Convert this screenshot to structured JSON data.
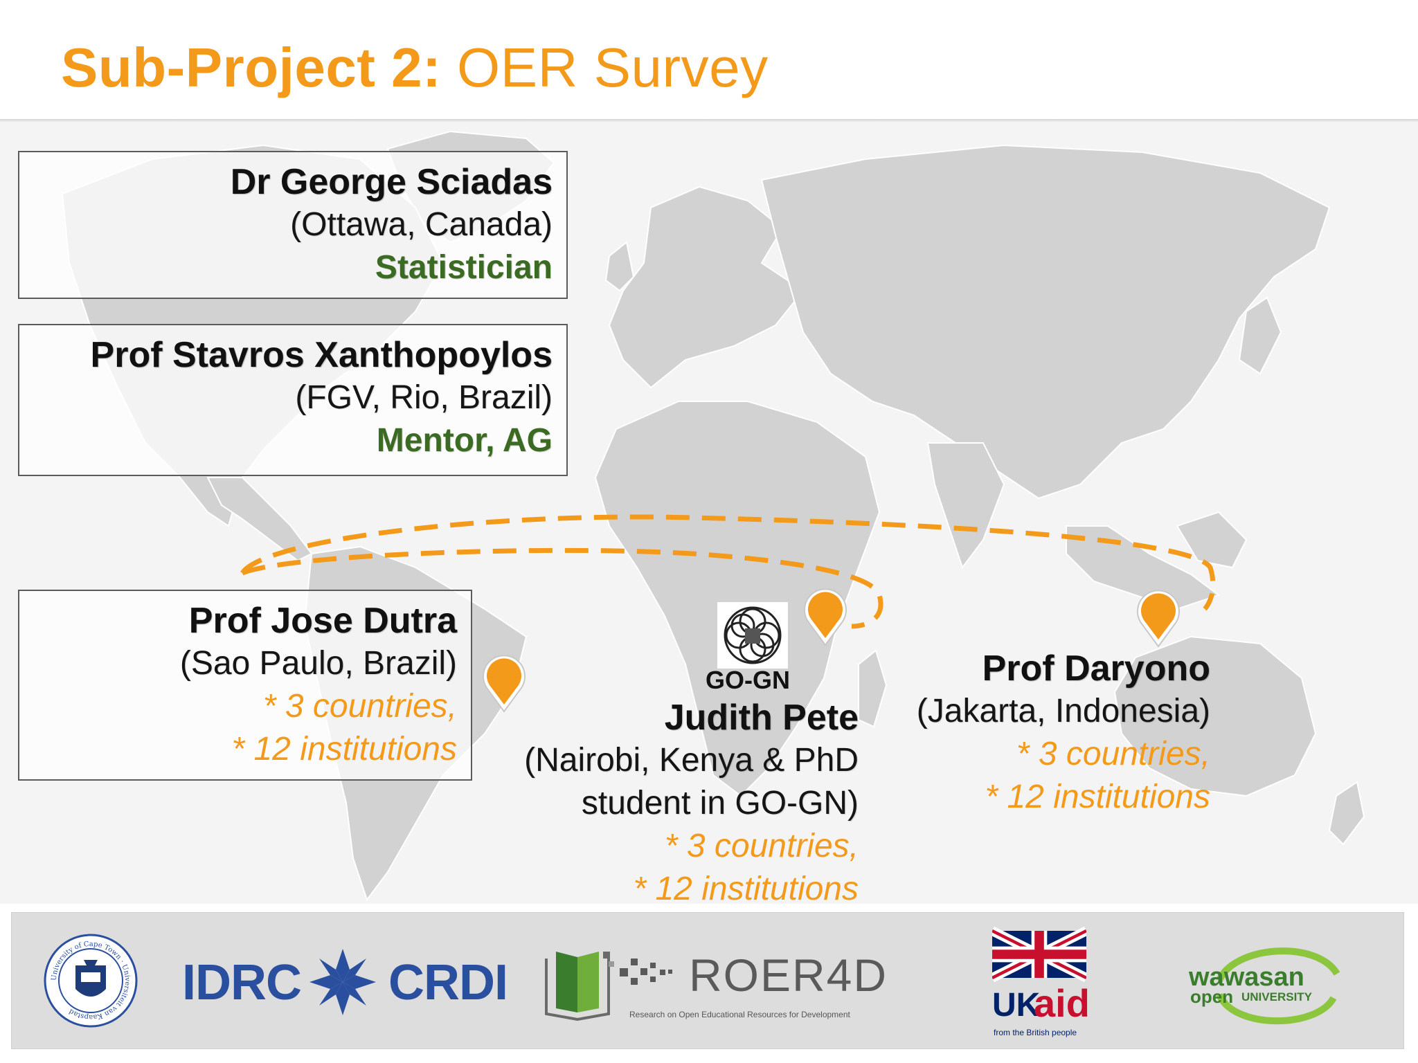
{
  "slide": {
    "title_bold": "Sub-Project 2:",
    "title_rest": " OER Survey"
  },
  "people": {
    "sciadas": {
      "name": "Dr George Sciadas",
      "location": "(Ottawa, Canada)",
      "role": "Statistician"
    },
    "xanthopoylos": {
      "name": "Prof Stavros Xanthopoylos",
      "location": "(FGV, Rio, Brazil)",
      "role": "Mentor, AG"
    },
    "dutra": {
      "name": "Prof Jose Dutra",
      "location": "(Sao Paulo, Brazil)",
      "stat1": "* 3 countries,",
      "stat2": "* 12 institutions"
    },
    "pete": {
      "name": "Judith Pete",
      "location1": "(Nairobi, Kenya & PhD",
      "location2": "student in GO-GN)",
      "stat1": "* 3 countries,",
      "stat2": "* 12 institutions"
    },
    "daryono": {
      "name": "Prof Daryono",
      "location": "(Jakarta, Indonesia)",
      "stat1": "* 3 countries,",
      "stat2": "* 12 institutions"
    }
  },
  "gogn_label": "GO-GN",
  "logos": {
    "idrc": "IDRC",
    "crdi": "CRDI",
    "roer4d": "ROER4D",
    "roer4d_tagline": "Research on Open Educational Resources for Development",
    "ukaid_uk": "UK",
    "ukaid_aid": "aid",
    "ukaid_tagline": "from the British people",
    "wawasan_line1": "wawasan",
    "wawasan_line2_a": "open",
    "wawasan_line2_b": "UNIVERSITY",
    "uct_seal_text": "University of Cape Town · Universiteit van Kaapstad"
  },
  "colors": {
    "accent_orange": "#f39a1b",
    "role_green": "#3b6b22",
    "map_land": "#d2d2d2",
    "idrc_blue": "#2a4f9e",
    "ukaid_red": "#c8102e",
    "wawasan_green": "#3a7d2c"
  }
}
